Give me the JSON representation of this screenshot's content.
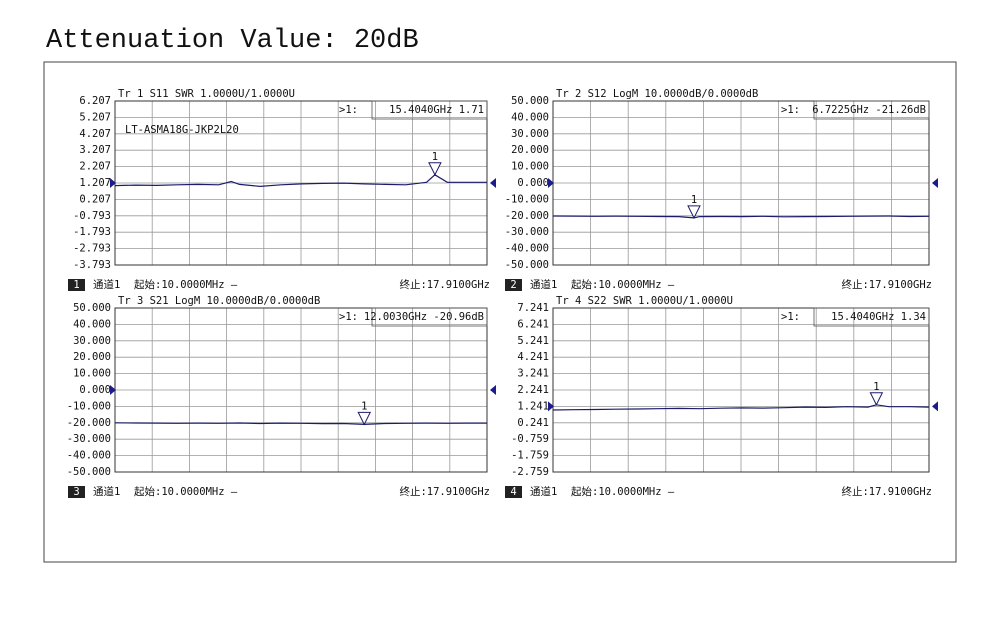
{
  "page_title": "Attenuation Value: 20dB",
  "chart_data": [
    {
      "type": "line",
      "title": "Tr 1  S11 SWR 1.0000U/1.0000U",
      "annotation": "LT-ASMA18G-JKP2L20",
      "trace_label": "1",
      "channel": "通道1",
      "start": "起始:10.0000MHz —",
      "stop": "终止:17.9100GHz",
      "ref_value": 1.207,
      "xlim": [
        0.01,
        17.91
      ],
      "ylim": [
        -3.793,
        6.207
      ],
      "yticks": [
        6.207,
        5.207,
        4.207,
        3.207,
        2.207,
        1.207,
        0.207,
        -0.793,
        -1.793,
        -2.793,
        -3.793
      ],
      "marker": {
        "label": "1",
        "prefix": ">1:",
        "readout": "15.4040GHz 1.71",
        "x": 15.404,
        "y": 1.71
      },
      "series": [
        {
          "color": "#1c1c6b",
          "x": [
            0.01,
            1,
            2,
            3,
            4,
            5,
            5.6,
            6,
            7,
            8,
            9,
            10,
            11,
            12,
            13,
            14,
            15,
            15.404,
            16,
            17,
            17.91
          ],
          "values": [
            1.05,
            1.08,
            1.06,
            1.1,
            1.12,
            1.1,
            1.3,
            1.12,
            1.0,
            1.1,
            1.15,
            1.18,
            1.2,
            1.15,
            1.12,
            1.1,
            1.25,
            1.71,
            1.25,
            1.25,
            1.25
          ]
        }
      ]
    },
    {
      "type": "line",
      "title": "Tr 2  S12 LogM 10.0000dB/0.0000dB",
      "trace_label": "2",
      "channel": "通道1",
      "start": "起始:10.0000MHz —",
      "stop": "终止:17.9100GHz",
      "ref_value": 0,
      "xlim": [
        0.01,
        17.91
      ],
      "ylim": [
        -50,
        50
      ],
      "yticks": [
        {
          "value": 50,
          "label": "50.000"
        },
        {
          "value": 40,
          "label": "40.000"
        },
        {
          "value": 30,
          "label": "30.000"
        },
        {
          "value": 20,
          "label": "20.000"
        },
        {
          "value": 10,
          "label": "10.000"
        },
        {
          "value": 0,
          "label": "0.000"
        },
        {
          "value": -10,
          "label": "-10.000"
        },
        {
          "value": -20,
          "label": "-20.000"
        },
        {
          "value": -30,
          "label": "-30.000"
        },
        {
          "value": -40,
          "label": "-40.000"
        },
        {
          "value": -50,
          "label": "-50.000"
        }
      ],
      "marker": {
        "label": "1",
        "prefix": ">1:",
        "readout": "6.7225GHz -21.26dB",
        "x": 6.7225,
        "y": -21.26
      },
      "series": [
        {
          "color": "#1c1c6b",
          "x": [
            0.01,
            1,
            2,
            3,
            4,
            5,
            6,
            6.7225,
            7,
            8,
            9,
            10,
            11,
            12,
            13,
            14,
            15,
            16,
            17,
            17.91
          ],
          "values": [
            -20.1,
            -20.2,
            -20.3,
            -20.2,
            -20.3,
            -20.4,
            -20.5,
            -21.26,
            -20.5,
            -20.4,
            -20.5,
            -20.3,
            -20.6,
            -20.5,
            -20.4,
            -20.3,
            -20.2,
            -20.1,
            -20.4,
            -20.3
          ]
        }
      ]
    },
    {
      "type": "line",
      "title": "Tr 3  S21 LogM 10.0000dB/0.0000dB",
      "trace_label": "3",
      "channel": "通道1",
      "start": "起始:10.0000MHz —",
      "stop": "终止:17.9100GHz",
      "ref_value": 0,
      "xlim": [
        0.01,
        17.91
      ],
      "ylim": [
        -50,
        50
      ],
      "yticks": [
        {
          "value": 50,
          "label": "50.000"
        },
        {
          "value": 40,
          "label": "40.000"
        },
        {
          "value": 30,
          "label": "30.000"
        },
        {
          "value": 20,
          "label": "20.000"
        },
        {
          "value": 10,
          "label": "10.000"
        },
        {
          "value": 0,
          "label": "0.000"
        },
        {
          "value": -10,
          "label": "-10.000"
        },
        {
          "value": -20,
          "label": "-20.000"
        },
        {
          "value": -30,
          "label": "-30.000"
        },
        {
          "value": -40,
          "label": "-40.000"
        },
        {
          "value": -50,
          "label": "-50.000"
        }
      ],
      "marker": {
        "label": "1",
        "prefix": ">1:",
        "readout": "12.0030GHz -20.96dB",
        "x": 12.003,
        "y": -20.96
      },
      "series": [
        {
          "color": "#1c1c6b",
          "x": [
            0.01,
            1,
            2,
            3,
            4,
            5,
            6,
            7,
            8,
            9,
            10,
            11,
            12.003,
            13,
            14,
            15,
            16,
            17,
            17.91
          ],
          "values": [
            -20.0,
            -20.1,
            -20.2,
            -20.3,
            -20.2,
            -20.3,
            -20.1,
            -20.4,
            -20.2,
            -20.3,
            -20.5,
            -20.4,
            -20.96,
            -20.4,
            -20.3,
            -20.2,
            -20.3,
            -20.2,
            -20.2
          ]
        }
      ]
    },
    {
      "type": "line",
      "title": "Tr 4  S22 SWR 1.0000U/1.0000U",
      "trace_label": "4",
      "channel": "通道1",
      "start": "起始:10.0000MHz —",
      "stop": "终止:17.9100GHz",
      "ref_value": 1.241,
      "xlim": [
        0.01,
        17.91
      ],
      "ylim": [
        -2.759,
        7.241
      ],
      "yticks": [
        7.241,
        6.241,
        5.241,
        4.241,
        3.241,
        2.241,
        1.241,
        0.241,
        -0.759,
        -1.759,
        -2.759
      ],
      "marker": {
        "label": "1",
        "prefix": ">1:",
        "readout": "15.4040GHz 1.34",
        "x": 15.404,
        "y": 1.34
      },
      "series": [
        {
          "color": "#1c1c6b",
          "x": [
            0.01,
            1,
            2,
            3,
            4,
            5,
            6,
            7,
            8,
            9,
            10,
            11,
            12,
            13,
            14,
            15,
            15.404,
            16,
            17,
            17.91
          ],
          "values": [
            1.02,
            1.04,
            1.05,
            1.07,
            1.08,
            1.1,
            1.12,
            1.1,
            1.13,
            1.15,
            1.14,
            1.16,
            1.2,
            1.18,
            1.22,
            1.2,
            1.34,
            1.22,
            1.22,
            1.2
          ]
        }
      ]
    }
  ]
}
